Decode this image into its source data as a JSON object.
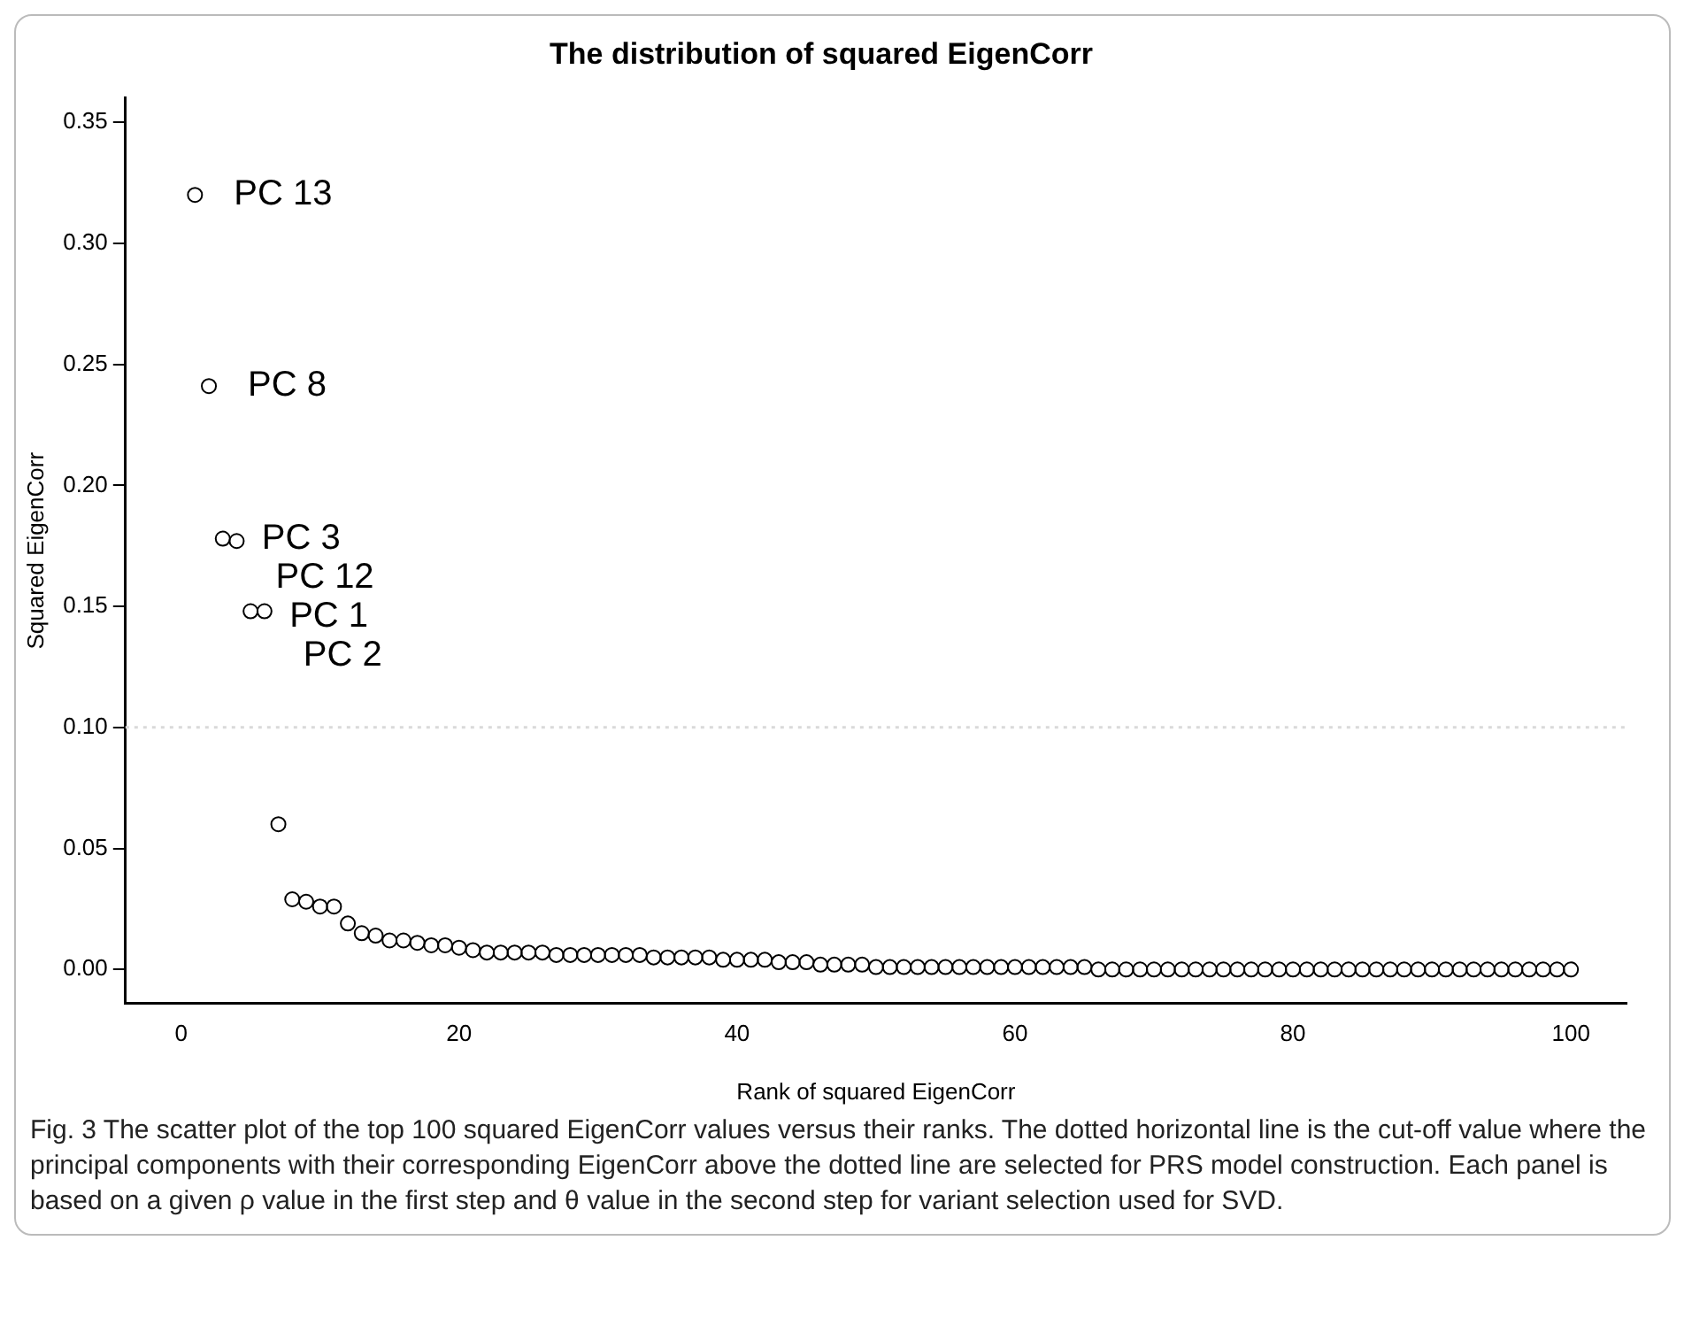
{
  "chart_data": {
    "type": "scatter",
    "title": "The distribution of squared EigenCorr",
    "xlabel": "Rank of squared EigenCorr",
    "ylabel": "Squared EigenCorr",
    "x": [
      1,
      2,
      3,
      4,
      5,
      6,
      7,
      8,
      9,
      10,
      11,
      12,
      13,
      14,
      15,
      16,
      17,
      18,
      19,
      20,
      21,
      22,
      23,
      24,
      25,
      26,
      27,
      28,
      29,
      30,
      31,
      32,
      33,
      34,
      35,
      36,
      37,
      38,
      39,
      40,
      41,
      42,
      43,
      44,
      45,
      46,
      47,
      48,
      49,
      50,
      51,
      52,
      53,
      54,
      55,
      56,
      57,
      58,
      59,
      60,
      61,
      62,
      63,
      64,
      65,
      66,
      67,
      68,
      69,
      70,
      71,
      72,
      73,
      74,
      75,
      76,
      77,
      78,
      79,
      80,
      81,
      82,
      83,
      84,
      85,
      86,
      87,
      88,
      89,
      90,
      91,
      92,
      93,
      94,
      95,
      96,
      97,
      98,
      99,
      100
    ],
    "values": [
      0.32,
      0.241,
      0.178,
      0.177,
      0.148,
      0.148,
      0.06,
      0.029,
      0.028,
      0.026,
      0.026,
      0.019,
      0.015,
      0.014,
      0.012,
      0.012,
      0.011,
      0.01,
      0.01,
      0.009,
      0.008,
      0.007,
      0.007,
      0.007,
      0.007,
      0.007,
      0.006,
      0.006,
      0.006,
      0.006,
      0.006,
      0.006,
      0.006,
      0.005,
      0.005,
      0.005,
      0.005,
      0.005,
      0.004,
      0.004,
      0.004,
      0.004,
      0.003,
      0.003,
      0.003,
      0.002,
      0.002,
      0.002,
      0.002,
      0.001,
      0.001,
      0.001,
      0.001,
      0.001,
      0.001,
      0.001,
      0.001,
      0.001,
      0.001,
      0.001,
      0.001,
      0.001,
      0.001,
      0.001,
      0.001,
      0.0,
      0.0,
      0.0,
      0.0,
      0.0,
      0.0,
      0.0,
      0.0,
      0.0,
      0.0,
      0.0,
      0.0,
      0.0,
      0.0,
      0.0,
      0.0,
      0.0,
      0.0,
      0.0,
      0.0,
      0.0,
      0.0,
      0.0,
      0.0,
      0.0,
      0.0,
      0.0,
      0.0,
      0.0,
      0.0,
      0.0,
      0.0,
      0.0,
      0.0,
      0.0
    ],
    "color": "#000000",
    "marker": "circle",
    "grid": false,
    "legend": false,
    "xlim": [
      -4,
      104
    ],
    "xticks": [
      0,
      20,
      40,
      60,
      80,
      100
    ],
    "ylim": [
      -0.014,
      0.36
    ],
    "yticks": [
      {
        "value": 0,
        "label": "0.00"
      },
      {
        "value": 0.05,
        "label": "0.05"
      },
      {
        "value": 0.1,
        "label": "0.10"
      },
      {
        "value": 0.15,
        "label": "0.15"
      },
      {
        "value": 0.2,
        "label": "0.20"
      },
      {
        "value": 0.25,
        "label": "0.25"
      },
      {
        "value": 0.3,
        "label": "0.30"
      },
      {
        "value": 0.35,
        "label": "0.35"
      }
    ],
    "ref_lines": [
      {
        "axis": "y",
        "value": 0.1,
        "color": "#d9d9d9",
        "line_style": "dotted"
      }
    ],
    "annotations": [
      {
        "text": "PC 13",
        "x": 1,
        "y": 0.32
      },
      {
        "text": "PC 8",
        "x": 2,
        "y": 0.241
      },
      {
        "text": "PC 3",
        "x": 3,
        "y": 0.178
      },
      {
        "text": "PC 12",
        "x": 4,
        "y": 0.177
      },
      {
        "text": "PC 1",
        "x": 5,
        "y": 0.148
      },
      {
        "text": "PC 2",
        "x": 6,
        "y": 0.148
      },
      "Fig. 3 The scatter plot of the top 100 squared EigenCorr values versus their ranks. The dotted horizontal line is the cut-off value where the principal components with their corresponding EigenCorr above the dotted line are selected for PRS model construction. Each panel is based on a given ρ value in the first step and θ value in the second step for variant selection used for SVD."
    ]
  }
}
